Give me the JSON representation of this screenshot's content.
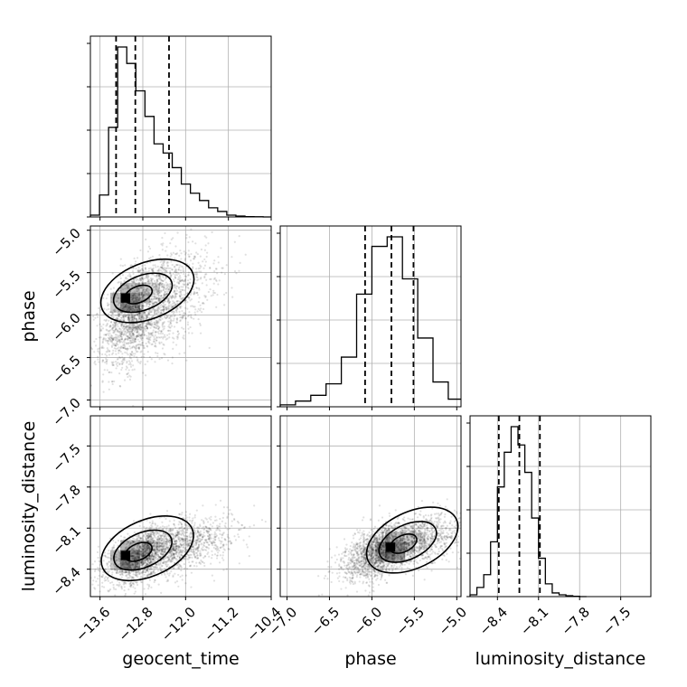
{
  "chart_data": {
    "type": "corner",
    "parameters": [
      "geocent_time",
      "phase",
      "luminosity_distance"
    ],
    "axis_labels": {
      "x": [
        "geocent_time",
        "phase",
        "luminosity_distance"
      ],
      "y": [
        "phase",
        "luminosity_distance"
      ]
    },
    "ranges": {
      "geocent_time": [
        -13.78,
        -10.4
      ],
      "phase": [
        -7.08,
        -4.95
      ],
      "luminosity_distance": [
        -8.6,
        -7.28
      ]
    },
    "ticks": {
      "geocent_time": {
        "values": [
          -13.6,
          -12.8,
          -12.0,
          -11.2,
          -10.4
        ],
        "labels": [
          "−13.6",
          "−12.8",
          "−12.0",
          "−11.2",
          "−10.4"
        ]
      },
      "phase": {
        "values": [
          -7.0,
          -6.5,
          -6.0,
          -5.5,
          -5.0
        ],
        "labels": [
          "−7.0",
          "−6.5",
          "−6.0",
          "−5.5",
          "−5.0"
        ]
      },
      "luminosity_distance": {
        "values": [
          -8.4,
          -8.1,
          -7.8,
          -7.5
        ],
        "labels": [
          "−8.4",
          "−8.1",
          "−7.8",
          "−7.5"
        ]
      }
    },
    "histograms": {
      "geocent_time": {
        "quantiles": [
          -13.3,
          -12.94,
          -12.31
        ],
        "edges": [
          -13.78,
          -13.61,
          -13.44,
          -13.27,
          -13.1,
          -12.93,
          -12.76,
          -12.59,
          -12.42,
          -12.25,
          -12.08,
          -11.91,
          -11.74,
          -11.57,
          -11.4,
          -11.23,
          -11.06,
          -10.89,
          -10.72,
          -10.55,
          -10.4
        ],
        "counts": [
          0.01,
          0.12,
          0.49,
          0.93,
          0.84,
          0.69,
          0.55,
          0.4,
          0.35,
          0.27,
          0.18,
          0.13,
          0.09,
          0.05,
          0.03,
          0.01,
          0.005,
          0.002,
          0.001,
          0.0
        ]
      },
      "phase": {
        "quantiles": [
          -6.08,
          -5.77,
          -5.51
        ],
        "edges": [
          -7.08,
          -6.9,
          -6.72,
          -6.54,
          -6.36,
          -6.18,
          -6.0,
          -5.82,
          -5.64,
          -5.46,
          -5.28,
          -5.1,
          -4.95
        ],
        "counts": [
          0.01,
          0.03,
          0.06,
          0.12,
          0.26,
          0.59,
          0.84,
          0.89,
          0.67,
          0.36,
          0.13,
          0.04
        ]
      },
      "luminosity_distance": {
        "quantiles": [
          -8.39,
          -8.24,
          -8.09
        ],
        "edges": [
          -8.6,
          -8.55,
          -8.5,
          -8.45,
          -8.4,
          -8.35,
          -8.3,
          -8.25,
          -8.2,
          -8.15,
          -8.1,
          -8.05,
          -8.0,
          -7.95,
          -7.9,
          -7.85,
          -7.8,
          -7.75
        ],
        "counts": [
          0.01,
          0.05,
          0.12,
          0.3,
          0.6,
          0.79,
          0.93,
          0.83,
          0.68,
          0.43,
          0.21,
          0.07,
          0.02,
          0.01,
          0.005,
          0.002,
          0.0
        ]
      }
    },
    "joint": [
      {
        "x": "geocent_time",
        "y": "phase",
        "mean": [
          -12.8,
          -5.92
        ],
        "std": [
          0.48,
          0.32
        ],
        "rho": 0.5,
        "peak": [
          -13.12,
          -5.8
        ],
        "points": 2600
      },
      {
        "x": "geocent_time",
        "y": "luminosity_distance",
        "mean": [
          -12.6,
          -8.27
        ],
        "std": [
          0.55,
          0.11
        ],
        "rho": 0.55,
        "peak": [
          -13.12,
          -8.3
        ],
        "points": 2600
      },
      {
        "x": "phase",
        "y": "luminosity_distance",
        "mean": [
          -5.8,
          -8.24
        ],
        "std": [
          0.34,
          0.11
        ],
        "rho": 0.6,
        "peak": [
          -5.78,
          -8.24
        ],
        "points": 2600
      }
    ],
    "grid": true
  }
}
